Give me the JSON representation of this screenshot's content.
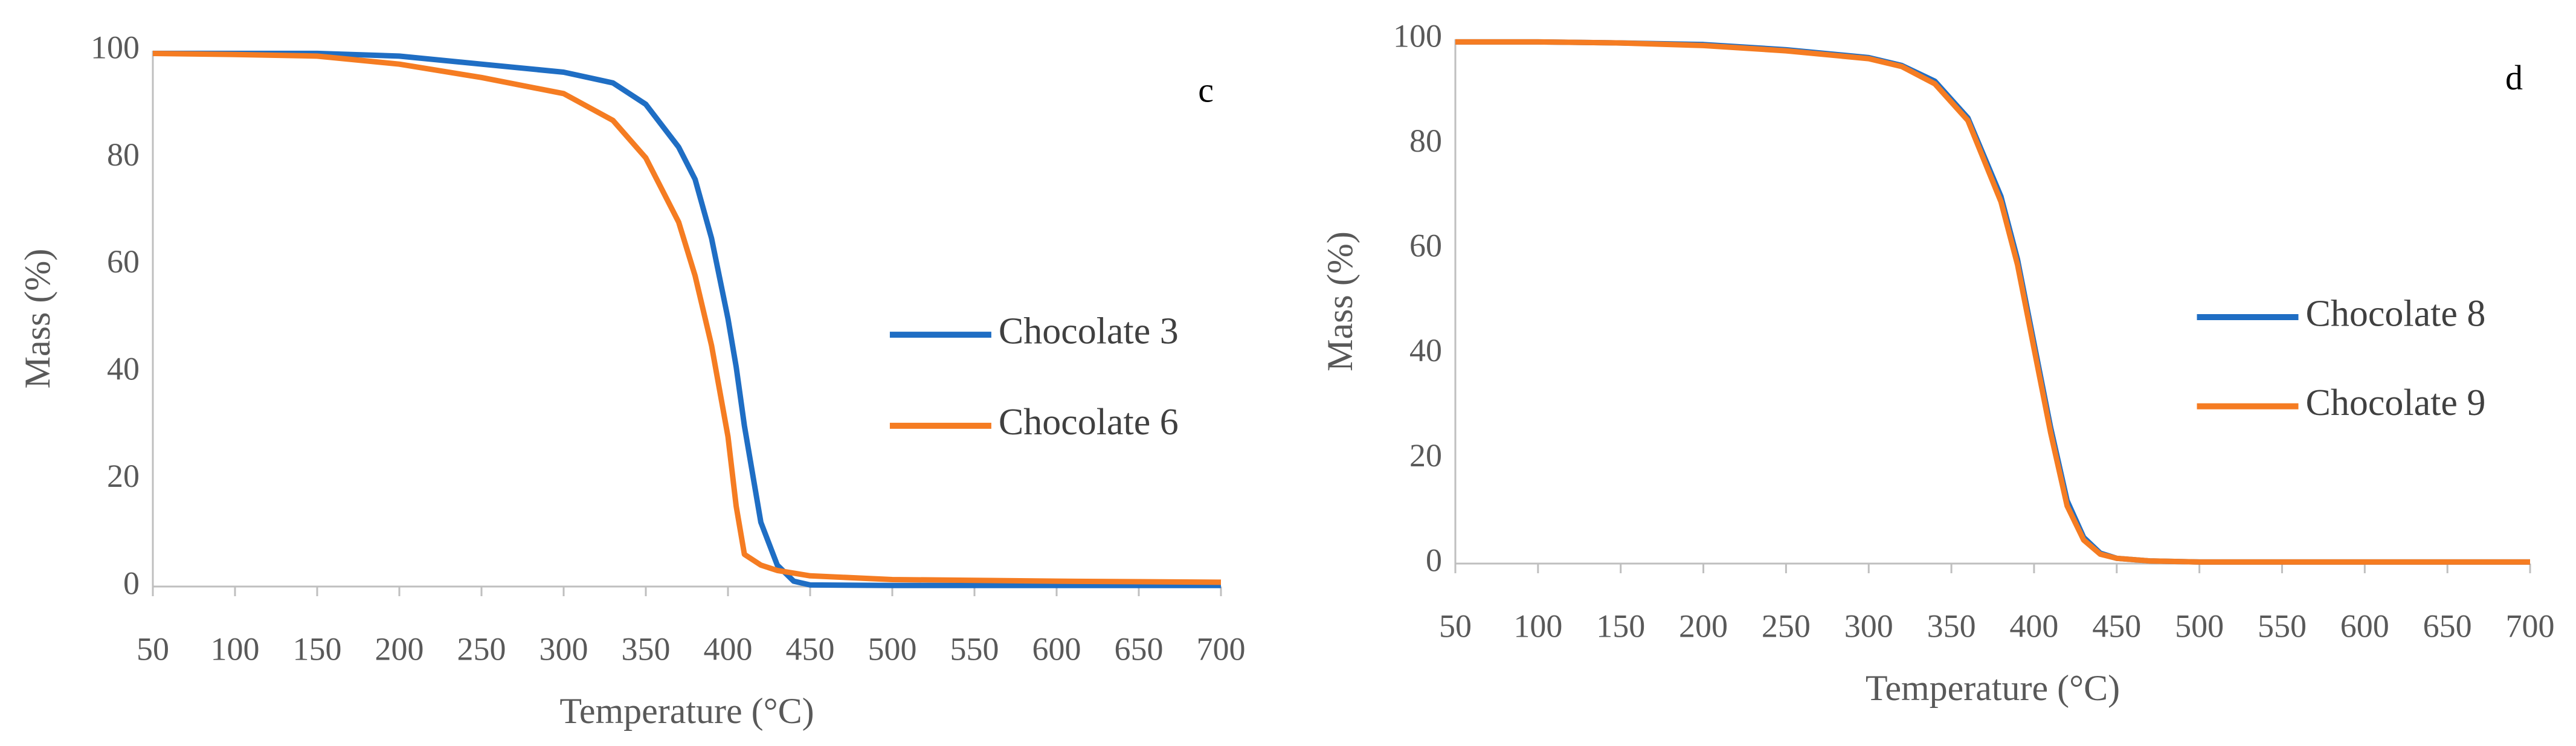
{
  "chart_data": [
    {
      "type": "line",
      "annotation": "c",
      "x_label": "Temperature (°C)",
      "y_label": "Mass (%)",
      "x": [
        50,
        100,
        150,
        200,
        250,
        300,
        330,
        350,
        370,
        380,
        390,
        400,
        405,
        410,
        420,
        430,
        440,
        450,
        500,
        600,
        700
      ],
      "series": [
        {
          "name": "Chocolate 3",
          "color": "#1f6ec4",
          "values": [
            99.5,
            99.5,
            99.5,
            99,
            97.5,
            96,
            94,
            90,
            82,
            76,
            65,
            50,
            41,
            30,
            12,
            4,
            1,
            0.3,
            0.2,
            0.2,
            0.2
          ]
        },
        {
          "name": "Chocolate 6",
          "color": "#f57c22",
          "values": [
            99.5,
            99.3,
            99,
            97.5,
            95,
            92,
            87,
            80,
            68,
            58,
            45,
            28,
            15,
            6,
            4,
            3,
            2.5,
            2,
            1.3,
            1,
            0.8
          ]
        }
      ],
      "xlim": [
        50,
        700
      ],
      "xticks": [
        50,
        100,
        150,
        200,
        250,
        300,
        350,
        400,
        450,
        500,
        550,
        600,
        650,
        700
      ],
      "ylim": [
        0,
        100
      ],
      "yticks": [
        0,
        20,
        40,
        60,
        80,
        100
      ],
      "grid": false
    },
    {
      "type": "line",
      "annotation": "d",
      "x_label": "Temperature (°C)",
      "y_label": "Mass (%)",
      "x": [
        50,
        100,
        150,
        200,
        250,
        300,
        320,
        340,
        360,
        380,
        390,
        400,
        410,
        420,
        430,
        440,
        450,
        470,
        500,
        600,
        700
      ],
      "series": [
        {
          "name": "Chocolate 8",
          "color": "#1f6ec4",
          "values": [
            99.5,
            99.5,
            99.3,
            99,
            98,
            96.5,
            95,
            92,
            85,
            70,
            58,
            42,
            26,
            12,
            5,
            2,
            1,
            0.5,
            0.3,
            0.3,
            0.3
          ]
        },
        {
          "name": "Chocolate 9",
          "color": "#f57c22",
          "values": [
            99.5,
            99.5,
            99.3,
            98.8,
            97.8,
            96.3,
            94.8,
            91.5,
            84.5,
            69,
            57,
            41,
            25,
            11,
            4.5,
            1.8,
            1,
            0.5,
            0.3,
            0.3,
            0.3
          ]
        }
      ],
      "xlim": [
        50,
        700
      ],
      "xticks": [
        50,
        100,
        150,
        200,
        250,
        300,
        350,
        400,
        450,
        500,
        550,
        600,
        650,
        700
      ],
      "ylim": [
        0,
        100
      ],
      "yticks": [
        0,
        20,
        40,
        60,
        80,
        100
      ],
      "grid": false
    }
  ]
}
